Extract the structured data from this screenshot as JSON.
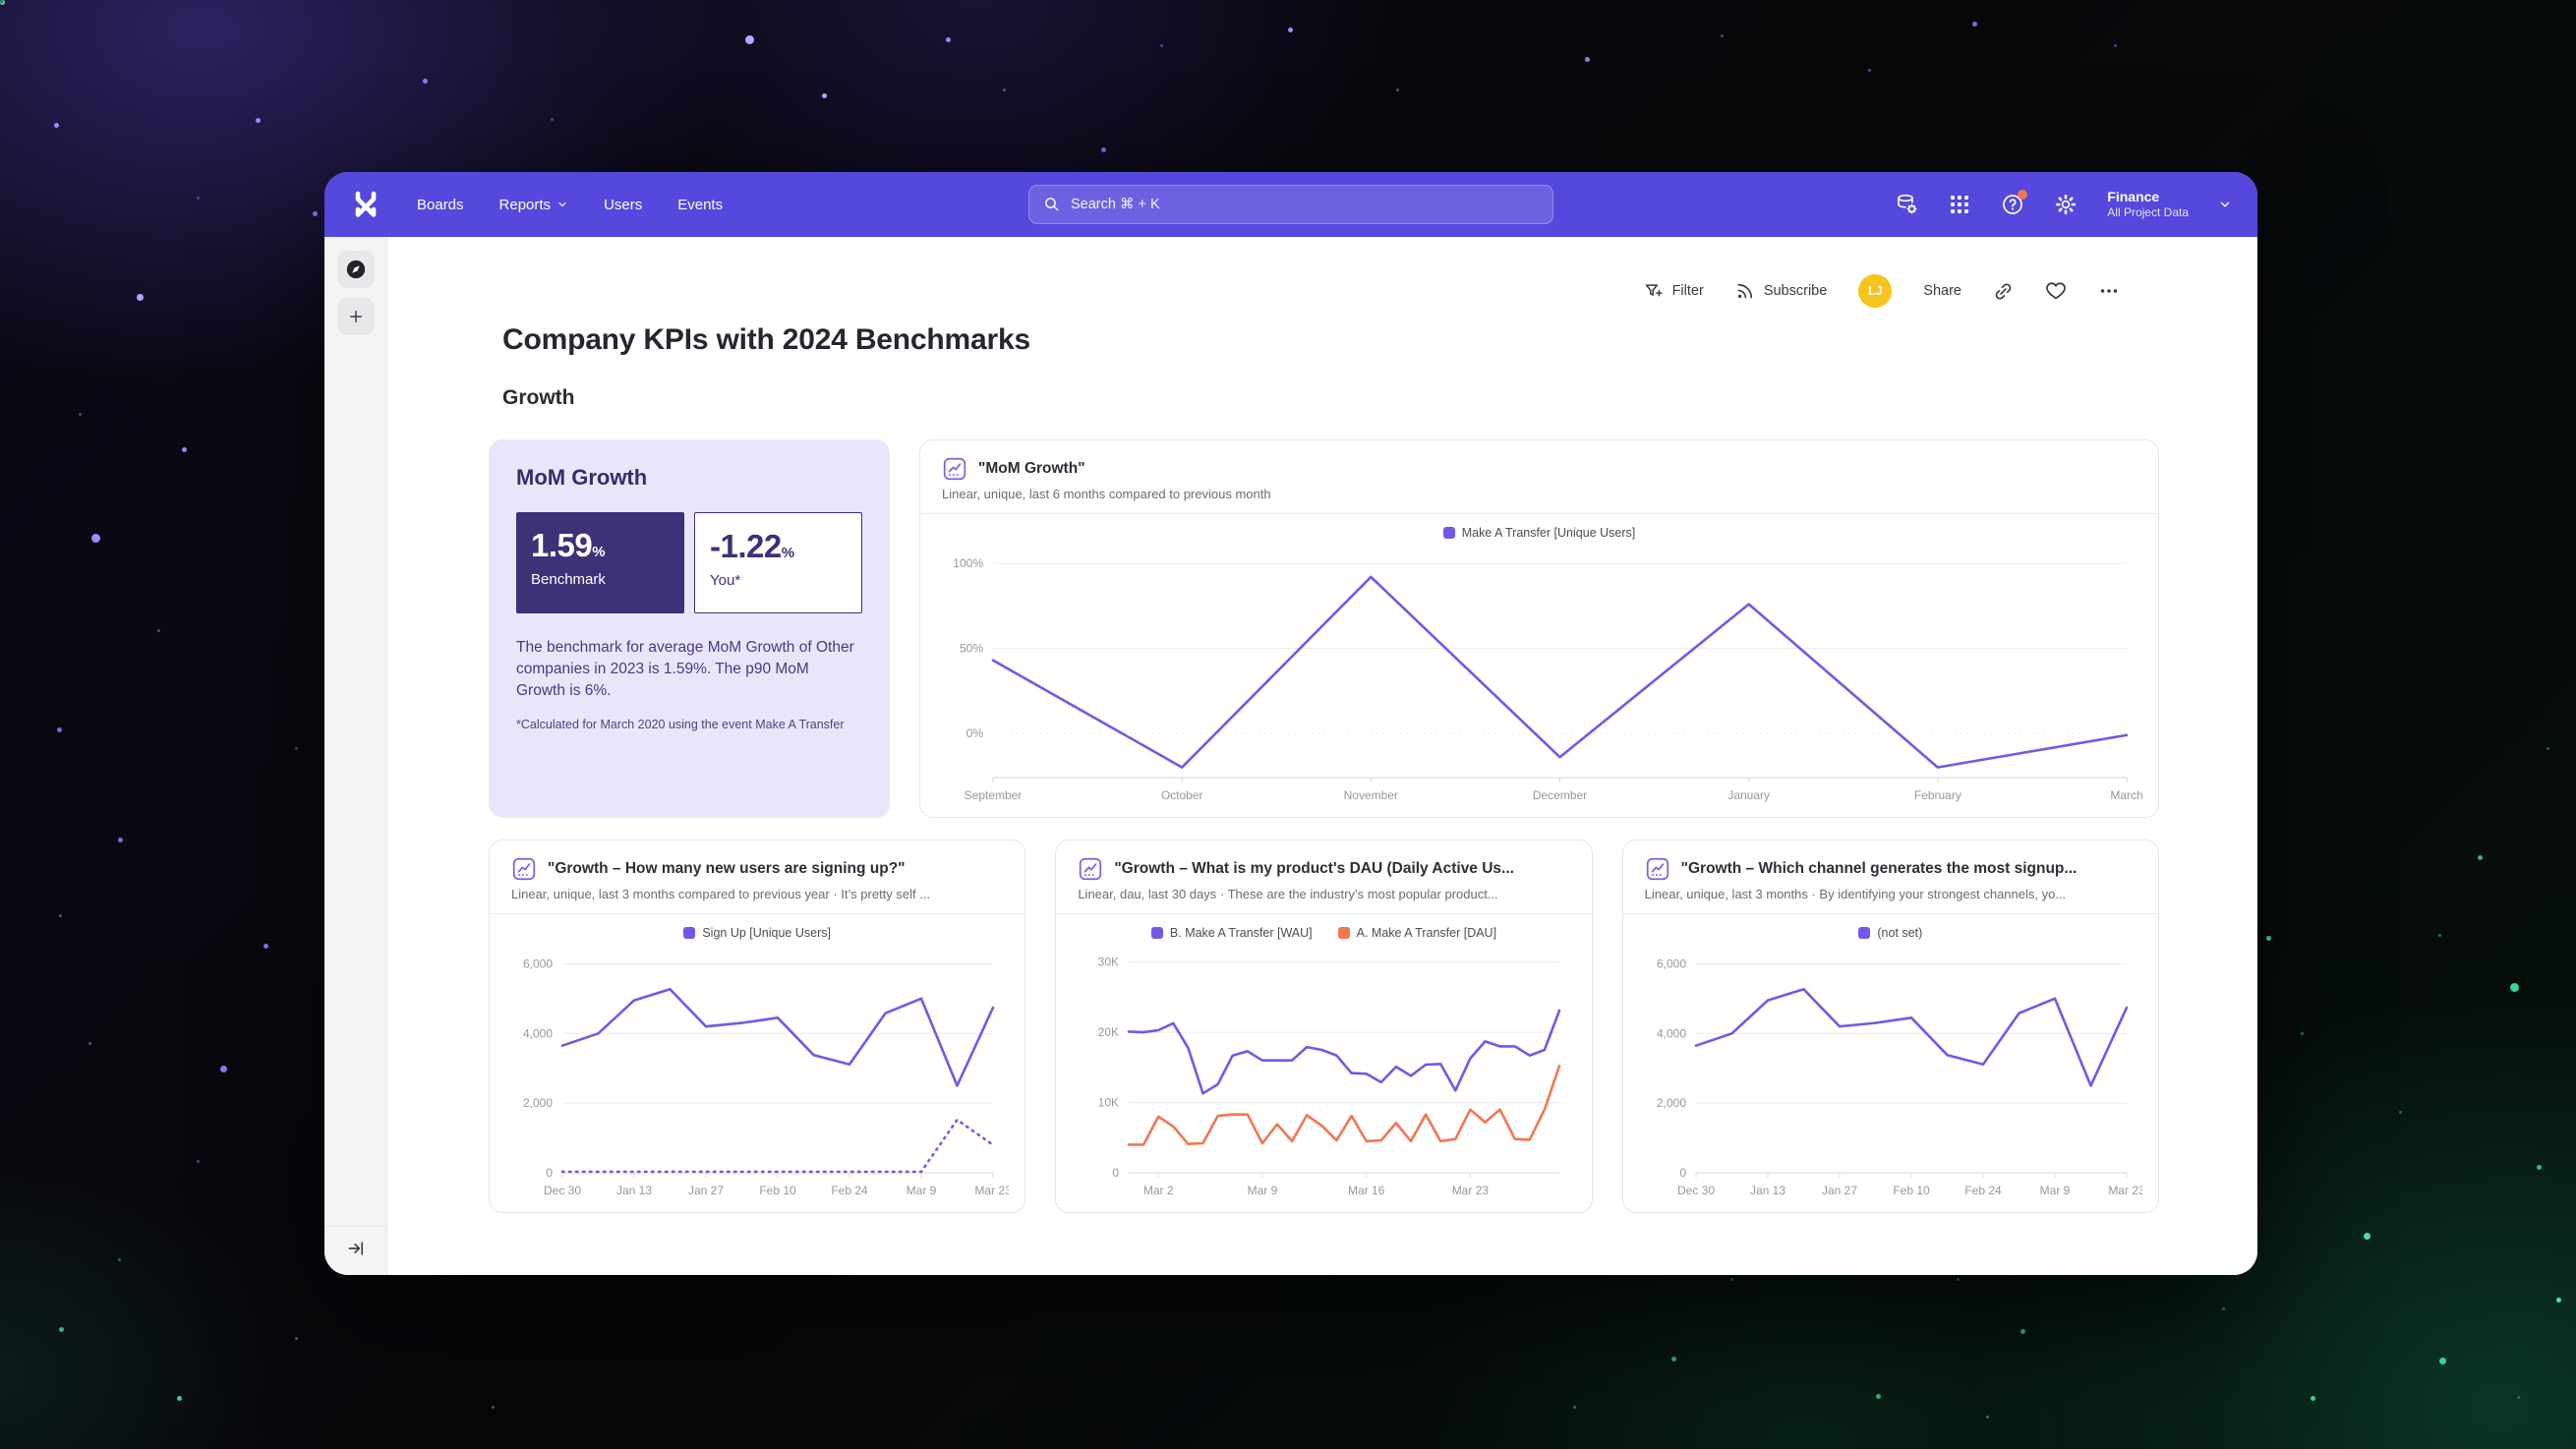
{
  "nav": {
    "items": [
      {
        "label": "Boards"
      },
      {
        "label": "Reports",
        "has_chevron": true
      },
      {
        "label": "Users"
      },
      {
        "label": "Events"
      }
    ],
    "search": {
      "placeholder": "Search  ⌘ + K"
    },
    "project": {
      "name": "Finance",
      "scope": "All Project Data"
    }
  },
  "toolbar": {
    "filter_label": "Filter",
    "subscribe_label": "Subscribe",
    "avatar_initials": "LJ",
    "share_label": "Share"
  },
  "page": {
    "title": "Company KPIs with 2024 Benchmarks",
    "section": "Growth"
  },
  "summary_card": {
    "title": "MoM Growth",
    "benchmark": {
      "value": "1.59",
      "unit": "%",
      "label": "Benchmark"
    },
    "you": {
      "value": "-1.22",
      "unit": "%",
      "label": "You*"
    },
    "description": "The benchmark for average MoM Growth of Other companies in 2023 is 1.59%. The p90 MoM Growth is 6%.",
    "footnote": "*Calculated for March 2020 using the event Make A Transfer"
  },
  "colors": {
    "accent_purple": "#5448dd",
    "line_purple": "#6d5be8",
    "line_orange": "#f4764f",
    "benchmark_navy": "#3b3277",
    "card_lavender": "#e9e6fa",
    "avatar_yellow": "#f7c51d",
    "notification_orange": "#f4764f"
  },
  "chart_data": [
    {
      "type": "line",
      "title": "\"MoM Growth\"",
      "subtitle": "Linear, unique, last 6 months compared to previous month",
      "x_count": 7,
      "xticks": [
        {
          "i": 0,
          "label": "September"
        },
        {
          "i": 1,
          "label": "October"
        },
        {
          "i": 2,
          "label": "November"
        },
        {
          "i": 3,
          "label": "December"
        },
        {
          "i": 4,
          "label": "January"
        },
        {
          "i": 5,
          "label": "February"
        },
        {
          "i": 6,
          "label": "March"
        }
      ],
      "ylim": [
        -26,
        107
      ],
      "yticks": [
        {
          "value": 100,
          "label": "100%"
        },
        {
          "value": 50,
          "label": "50%"
        },
        {
          "value": 0,
          "label": "0%",
          "dashed": true
        }
      ],
      "legend": [
        {
          "label": "Make A Transfer [Unique Users]",
          "color": "#6d5be8"
        }
      ],
      "series": [
        {
          "name": "Make A Transfer [Unique Users]",
          "color": "#6d5be8",
          "values": [
            43,
            -20,
            92,
            -14,
            76,
            -20,
            -1
          ]
        }
      ]
    },
    {
      "type": "line",
      "title": "\"Growth – How many new users are signing up?\"",
      "subtitle": "Linear, unique, last 3 months compared to previous year · It’s pretty self ...",
      "x_count": 13,
      "xticks": [
        {
          "i": 0,
          "label": "Dec 30"
        },
        {
          "i": 2,
          "label": "Jan 13"
        },
        {
          "i": 4,
          "label": "Jan 27"
        },
        {
          "i": 6,
          "label": "Feb 10"
        },
        {
          "i": 8,
          "label": "Feb 24"
        },
        {
          "i": 10,
          "label": "Mar 9"
        },
        {
          "i": 12,
          "label": "Mar 23"
        }
      ],
      "ylim": [
        0,
        6350
      ],
      "yticks": [
        {
          "value": 6000,
          "label": "6,000"
        },
        {
          "value": 4000,
          "label": "4,000"
        },
        {
          "value": 2000,
          "label": "2,000"
        },
        {
          "value": 0,
          "label": "0",
          "axis": true
        }
      ],
      "legend": [
        {
          "label": "Sign Up [Unique Users]",
          "color": "#6d5be8"
        }
      ],
      "series": [
        {
          "name": "Sign Up [Unique Users]",
          "color": "#6d5be8",
          "values": [
            3650,
            4000,
            4950,
            5270,
            4200,
            4300,
            4450,
            3380,
            3110,
            4580,
            5000,
            2500,
            4740
          ]
        },
        {
          "name": "Sign Up [Unique Users]",
          "color": "#6d5be8",
          "dashed": true,
          "values": [
            30,
            30,
            30,
            30,
            30,
            30,
            30,
            30,
            30,
            30,
            30,
            1520,
            800
          ]
        }
      ]
    },
    {
      "type": "line",
      "title": "\"Growth – What is my product's DAU (Daily Active Us...",
      "subtitle": "Linear, dau, last 30 days · These are the industry’s most popular product...",
      "x_count": 30,
      "xticks": [
        {
          "i": 2,
          "label": "Mar 2"
        },
        {
          "i": 9,
          "label": "Mar 9"
        },
        {
          "i": 16,
          "label": "Mar 16"
        },
        {
          "i": 23,
          "label": "Mar 23"
        }
      ],
      "ylim": [
        0,
        31500
      ],
      "yticks": [
        {
          "value": 30000,
          "label": "30K"
        },
        {
          "value": 20000,
          "label": "20K"
        },
        {
          "value": 10000,
          "label": "10K"
        },
        {
          "value": 0,
          "label": "0",
          "axis": true
        }
      ],
      "legend": [
        {
          "label": "B. Make A Transfer [WAU]",
          "color": "#6d5be8"
        },
        {
          "label": "A. Make A Transfer [DAU]",
          "color": "#f4764f"
        }
      ],
      "series": [
        {
          "name": "B. Make A Transfer [WAU]",
          "color": "#6d5be8",
          "values": [
            20100,
            20000,
            20300,
            21300,
            17800,
            11300,
            12600,
            16700,
            17300,
            16000,
            16000,
            16000,
            17900,
            17500,
            16700,
            14200,
            14100,
            12900,
            15100,
            13800,
            15400,
            15500,
            11700,
            16300,
            18700,
            18000,
            18000,
            16700,
            17500,
            23100
          ]
        },
        {
          "name": "A. Make A Transfer [DAU]",
          "color": "#f4764f",
          "values": [
            4000,
            4000,
            8000,
            6600,
            4100,
            4200,
            8100,
            8300,
            8300,
            4200,
            6900,
            4500,
            8200,
            6700,
            4600,
            8100,
            4500,
            4600,
            7100,
            4500,
            8300,
            4500,
            4800,
            9000,
            7200,
            9000,
            4800,
            4700,
            9000,
            15200
          ]
        }
      ]
    },
    {
      "type": "line",
      "title": "\"Growth – Which channel generates the most signup...",
      "subtitle": "Linear, unique, last 3 months · By identifying your strongest channels, yo...",
      "x_count": 13,
      "xticks": [
        {
          "i": 0,
          "label": "Dec 30"
        },
        {
          "i": 2,
          "label": "Jan 13"
        },
        {
          "i": 4,
          "label": "Jan 27"
        },
        {
          "i": 6,
          "label": "Feb 10"
        },
        {
          "i": 8,
          "label": "Feb 24"
        },
        {
          "i": 10,
          "label": "Mar 9"
        },
        {
          "i": 12,
          "label": "Mar 23"
        }
      ],
      "ylim": [
        0,
        6350
      ],
      "yticks": [
        {
          "value": 6000,
          "label": "6,000"
        },
        {
          "value": 4000,
          "label": "4,000"
        },
        {
          "value": 2000,
          "label": "2,000"
        },
        {
          "value": 0,
          "label": "0",
          "axis": true
        }
      ],
      "legend": [
        {
          "label": "(not set)",
          "color": "#6d5be8"
        }
      ],
      "series": [
        {
          "name": "(not set)",
          "color": "#6d5be8",
          "values": [
            3650,
            4000,
            4950,
            5270,
            4200,
            4300,
            4450,
            3380,
            3110,
            4580,
            5000,
            2500,
            4740
          ]
        }
      ]
    }
  ]
}
